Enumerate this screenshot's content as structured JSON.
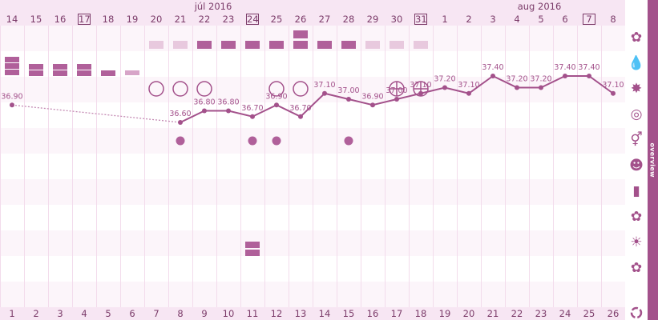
{
  "months": {
    "left": "júl 2016",
    "right": "aug 2016"
  },
  "top_days": [
    {
      "label": "14",
      "boxed": false
    },
    {
      "label": "15",
      "boxed": false
    },
    {
      "label": "16",
      "boxed": false
    },
    {
      "label": "17",
      "boxed": true
    },
    {
      "label": "18",
      "boxed": false
    },
    {
      "label": "19",
      "boxed": false
    },
    {
      "label": "20",
      "boxed": false
    },
    {
      "label": "21",
      "boxed": false
    },
    {
      "label": "22",
      "boxed": false
    },
    {
      "label": "23",
      "boxed": false
    },
    {
      "label": "24",
      "boxed": true
    },
    {
      "label": "25",
      "boxed": false
    },
    {
      "label": "26",
      "boxed": false
    },
    {
      "label": "27",
      "boxed": false
    },
    {
      "label": "28",
      "boxed": false
    },
    {
      "label": "29",
      "boxed": false
    },
    {
      "label": "30",
      "boxed": false
    },
    {
      "label": "31",
      "boxed": true
    },
    {
      "label": "1",
      "boxed": false
    },
    {
      "label": "2",
      "boxed": false
    },
    {
      "label": "3",
      "boxed": false
    },
    {
      "label": "4",
      "boxed": false
    },
    {
      "label": "5",
      "boxed": false
    },
    {
      "label": "6",
      "boxed": false
    },
    {
      "label": "7",
      "boxed": true
    },
    {
      "label": "8",
      "boxed": false
    }
  ],
  "cycle_days": [
    "1",
    "2",
    "3",
    "4",
    "5",
    "6",
    "7",
    "8",
    "9",
    "10",
    "11",
    "12",
    "13",
    "14",
    "15",
    "16",
    "17",
    "18",
    "19",
    "20",
    "21",
    "22",
    "23",
    "24",
    "25",
    "26"
  ],
  "temperatures": [
    {
      "day": 1,
      "value": 36.9,
      "label": "36.90"
    },
    {
      "day": 8,
      "value": 36.6,
      "label": "36.60"
    },
    {
      "day": 9,
      "value": 36.8,
      "label": "36.80"
    },
    {
      "day": 10,
      "value": 36.8,
      "label": "36.80"
    },
    {
      "day": 11,
      "value": 36.7,
      "label": "36.70"
    },
    {
      "day": 12,
      "value": 36.9,
      "label": "36.90"
    },
    {
      "day": 13,
      "value": 36.7,
      "label": "36.70"
    },
    {
      "day": 14,
      "value": 37.1,
      "label": "37.10"
    },
    {
      "day": 15,
      "value": 37.0,
      "label": "37.00"
    },
    {
      "day": 16,
      "value": 36.9,
      "label": "36.90"
    },
    {
      "day": 17,
      "value": 37.0,
      "label": "37.00"
    },
    {
      "day": 18,
      "value": 37.1,
      "label": "37.10"
    },
    {
      "day": 19,
      "value": 37.2,
      "label": "37.20"
    },
    {
      "day": 20,
      "value": 37.1,
      "label": "37.10"
    },
    {
      "day": 21,
      "value": 37.4,
      "label": "37.40"
    },
    {
      "day": 22,
      "value": 37.2,
      "label": "37.20"
    },
    {
      "day": 23,
      "value": 37.2,
      "label": "37.20"
    },
    {
      "day": 24,
      "value": 37.4,
      "label": "37.40"
    },
    {
      "day": 25,
      "value": 37.4,
      "label": "37.40"
    },
    {
      "day": 26,
      "value": 37.1,
      "label": "37.10"
    }
  ],
  "sex_days": [
    8,
    11,
    12,
    15
  ],
  "mucus_days": [
    {
      "day": 7,
      "mark": "empty"
    },
    {
      "day": 8,
      "mark": "empty"
    },
    {
      "day": 9,
      "mark": "empty"
    },
    {
      "day": 12,
      "mark": "empty"
    },
    {
      "day": 13,
      "mark": "empty"
    },
    {
      "day": 17,
      "mark": "plus"
    },
    {
      "day": 18,
      "mark": "plus"
    }
  ],
  "bleeding_days": [
    {
      "day": 1,
      "level": "heavy"
    },
    {
      "day": 2,
      "level": "medium"
    },
    {
      "day": 3,
      "level": "medium"
    },
    {
      "day": 4,
      "level": "medium"
    },
    {
      "day": 5,
      "level": "light"
    },
    {
      "day": 6,
      "level": "spotting"
    }
  ],
  "cervix_days": [
    {
      "day": 7,
      "level": "light"
    },
    {
      "day": 8,
      "level": "light"
    },
    {
      "day": 9,
      "level": "dark"
    },
    {
      "day": 10,
      "level": "dark"
    },
    {
      "day": 11,
      "level": "dark"
    },
    {
      "day": 12,
      "level": "dark"
    },
    {
      "day": 13,
      "level": "dark-double"
    },
    {
      "day": 14,
      "level": "dark"
    },
    {
      "day": 15,
      "level": "dark"
    },
    {
      "day": 16,
      "level": "light"
    },
    {
      "day": 17,
      "level": "light"
    },
    {
      "day": 18,
      "level": "light"
    }
  ],
  "note_block_day": 11,
  "sidebar_icons": [
    "flower-icon",
    "drop-icon",
    "temperature-splash-icon",
    "cervix-icon",
    "gender-icon",
    "mood-icon",
    "note-icon",
    "flower-check-icon",
    "sun-icon",
    "flower-alert-icon"
  ],
  "side_tab": "overview",
  "colors": {
    "accent": "#a3518b",
    "light": "#e3c4da",
    "bar": "#f7e6f3"
  }
}
